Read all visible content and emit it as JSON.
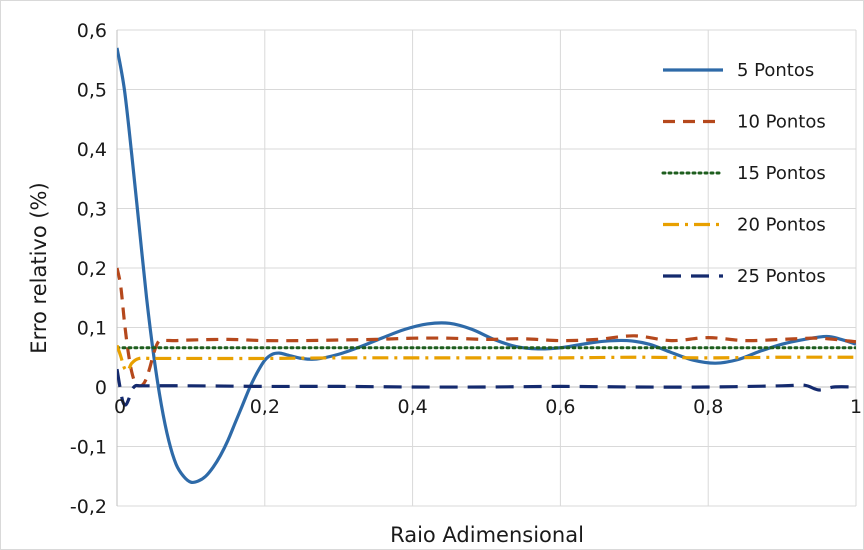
{
  "chart_data": {
    "type": "line",
    "title": "",
    "xlabel": "Raio Adimensional",
    "ylabel": "Erro relativo (%)",
    "xlim": [
      0,
      1
    ],
    "ylim": [
      -0.2,
      0.6
    ],
    "x_ticks": [
      0,
      0.2,
      0.4,
      0.6,
      0.8,
      1
    ],
    "x_tick_labels": [
      "0",
      "0,2",
      "0,4",
      "0,6",
      "0,8",
      "1"
    ],
    "y_ticks": [
      -0.2,
      -0.1,
      0,
      0.1,
      0.2,
      0.3,
      0.4,
      0.5,
      0.6
    ],
    "y_tick_labels": [
      "-0,2",
      "-0,1",
      "0",
      "0,1",
      "0,2",
      "0,3",
      "0,4",
      "0,5",
      "0,6"
    ],
    "grid": true,
    "legend_position": "top-right",
    "series": [
      {
        "name": "5 Pontos",
        "color": "#2e6aa8",
        "dash": "solid",
        "x": [
          0,
          0.01,
          0.02,
          0.03,
          0.04,
          0.05,
          0.06,
          0.07,
          0.08,
          0.09,
          0.1,
          0.11,
          0.12,
          0.13,
          0.14,
          0.15,
          0.16,
          0.17,
          0.18,
          0.19,
          0.2,
          0.21,
          0.22,
          0.23,
          0.25,
          0.27,
          0.3,
          0.33,
          0.36,
          0.39,
          0.42,
          0.45,
          0.48,
          0.51,
          0.54,
          0.57,
          0.6,
          0.63,
          0.66,
          0.69,
          0.72,
          0.75,
          0.78,
          0.81,
          0.84,
          0.87,
          0.9,
          0.93,
          0.96,
          0.98,
          1
        ],
        "values": [
          0.57,
          0.5,
          0.39,
          0.27,
          0.15,
          0.05,
          -0.03,
          -0.09,
          -0.13,
          -0.15,
          -0.16,
          -0.158,
          -0.15,
          -0.135,
          -0.115,
          -0.09,
          -0.06,
          -0.03,
          0,
          0.025,
          0.045,
          0.055,
          0.057,
          0.054,
          0.048,
          0.047,
          0.055,
          0.068,
          0.083,
          0.097,
          0.106,
          0.107,
          0.097,
          0.08,
          0.068,
          0.064,
          0.066,
          0.072,
          0.077,
          0.078,
          0.072,
          0.058,
          0.045,
          0.04,
          0.046,
          0.06,
          0.072,
          0.08,
          0.085,
          0.08,
          0.072
        ]
      },
      {
        "name": "10 Pontos",
        "color": "#b5481c",
        "dash": "dashed",
        "x": [
          0,
          0.005,
          0.01,
          0.015,
          0.02,
          0.025,
          0.03,
          0.035,
          0.04,
          0.045,
          0.05,
          0.055,
          0.06,
          0.08,
          0.1,
          0.15,
          0.2,
          0.25,
          0.3,
          0.35,
          0.4,
          0.45,
          0.5,
          0.55,
          0.6,
          0.65,
          0.7,
          0.75,
          0.8,
          0.85,
          0.9,
          0.95,
          1
        ],
        "values": [
          0.2,
          0.17,
          0.11,
          0.06,
          0.025,
          0.006,
          0.002,
          0.004,
          0.015,
          0.035,
          0.058,
          0.074,
          0.078,
          0.078,
          0.079,
          0.08,
          0.078,
          0.078,
          0.079,
          0.08,
          0.082,
          0.082,
          0.08,
          0.081,
          0.078,
          0.08,
          0.086,
          0.078,
          0.083,
          0.078,
          0.08,
          0.082,
          0.076
        ]
      },
      {
        "name": "15 Pontos",
        "color": "#1e5e1e",
        "dash": "dotted",
        "x": [
          0,
          0.1,
          0.2,
          0.3,
          0.4,
          0.5,
          0.6,
          0.7,
          0.8,
          0.9,
          1
        ],
        "values": [
          0.066,
          0.066,
          0.066,
          0.066,
          0.066,
          0.066,
          0.066,
          0.066,
          0.066,
          0.066,
          0.066
        ]
      },
      {
        "name": "20 Pontos",
        "color": "#e8a000",
        "dash": "dashdot",
        "x": [
          0,
          0.005,
          0.01,
          0.015,
          0.02,
          0.03,
          0.05,
          0.1,
          0.2,
          0.3,
          0.4,
          0.5,
          0.6,
          0.7,
          0.8,
          0.9,
          1
        ],
        "values": [
          0.07,
          0.052,
          0.032,
          0.028,
          0.04,
          0.048,
          0.048,
          0.048,
          0.048,
          0.049,
          0.049,
          0.049,
          0.049,
          0.05,
          0.049,
          0.05,
          0.05
        ]
      },
      {
        "name": "25 Pontos",
        "color": "#142a6e",
        "dash": "longdash",
        "x": [
          0,
          0.004,
          0.008,
          0.012,
          0.016,
          0.02,
          0.025,
          0.03,
          0.04,
          0.1,
          0.2,
          0.3,
          0.4,
          0.5,
          0.6,
          0.7,
          0.8,
          0.9,
          0.93,
          0.95,
          0.97,
          1
        ],
        "values": [
          0.03,
          0.0,
          -0.025,
          -0.03,
          -0.02,
          -0.005,
          0.002,
          0.002,
          0.002,
          0.002,
          0.001,
          0.001,
          0.0,
          0.0,
          0.001,
          0.0,
          0.0,
          0.002,
          0.003,
          -0.005,
          0.0,
          0.0
        ]
      }
    ]
  }
}
